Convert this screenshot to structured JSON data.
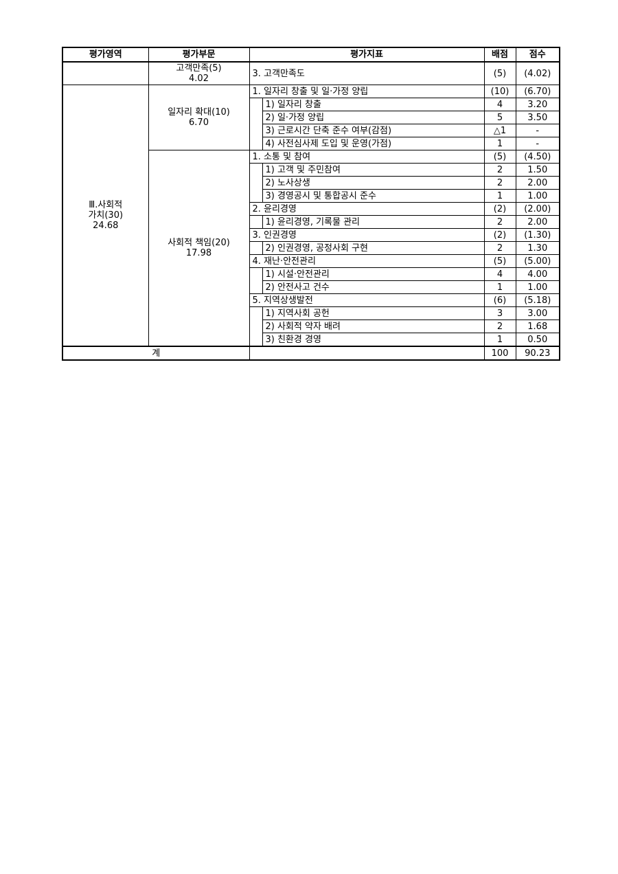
{
  "headers": {
    "area": "평가영역",
    "division": "평가부문",
    "indicator": "평가지표",
    "weight": "배점",
    "score": "점수"
  },
  "sections": [
    {
      "area": "",
      "divisions": [
        {
          "label": "고객만족(5)\n4.02",
          "groups": [
            {
              "main": {
                "label": "3. 고객만족도",
                "weight": "(5)",
                "score": "(4.02)"
              },
              "subs": []
            }
          ]
        }
      ]
    },
    {
      "area": "Ⅲ.사회적\n가치(30)\n24.68",
      "divisions": [
        {
          "label": "일자리 확대(10)\n6.70",
          "groups": [
            {
              "main": {
                "label": "1. 일자리 창출 및 일·가정 양립",
                "weight": "(10)",
                "score": "(6.70)"
              },
              "subs": [
                {
                  "label": "1) 일자리 창출",
                  "weight": "4",
                  "score": "3.20"
                },
                {
                  "label": "2) 일·가정 양립",
                  "weight": "5",
                  "score": "3.50"
                },
                {
                  "label": "3) 근로시간 단축 준수 여부(감점)",
                  "weight": "△1",
                  "score": "-"
                },
                {
                  "label": "4) 사전심사제 도입 및 운영(가점)",
                  "weight": "1",
                  "score": "-"
                }
              ]
            }
          ]
        },
        {
          "label": "사회적 책임(20)\n17.98",
          "groups": [
            {
              "main": {
                "label": "1. 소통 및 참여",
                "weight": "(5)",
                "score": "(4.50)"
              },
              "subs": [
                {
                  "label": "1) 고객 및 주민참여",
                  "weight": "2",
                  "score": "1.50"
                },
                {
                  "label": "2) 노사상생",
                  "weight": "2",
                  "score": "2.00"
                },
                {
                  "label": "3) 경영공시 및 통합공시 준수",
                  "weight": "1",
                  "score": "1.00"
                }
              ]
            },
            {
              "main": {
                "label": "2. 윤리경영",
                "weight": "(2)",
                "score": "(2.00)"
              },
              "subs": [
                {
                  "label": "1) 윤리경영, 기록물 관리",
                  "weight": "2",
                  "score": "2.00"
                }
              ]
            },
            {
              "main": {
                "label": "3. 인권경영",
                "weight": "(2)",
                "score": "(1.30)"
              },
              "subs": [
                {
                  "label": "2) 인권경영, 공정사회 구현",
                  "weight": "2",
                  "score": "1.30"
                }
              ]
            },
            {
              "main": {
                "label": "4. 재난·안전관리",
                "weight": "(5)",
                "score": "(5.00)"
              },
              "subs": [
                {
                  "label": "1) 시설·안전관리",
                  "weight": "4",
                  "score": "4.00"
                },
                {
                  "label": "2) 안전사고 건수",
                  "weight": "1",
                  "score": "1.00"
                }
              ]
            },
            {
              "main": {
                "label": "5. 지역상생발전",
                "weight": "(6)",
                "score": "(5.18)"
              },
              "subs": [
                {
                  "label": "1) 지역사회 공헌",
                  "weight": "3",
                  "score": "3.00"
                },
                {
                  "label": "2) 사회적 약자 배려",
                  "weight": "2",
                  "score": "1.68"
                },
                {
                  "label": "3) 친환경 경영",
                  "weight": "1",
                  "score": "0.50"
                }
              ]
            }
          ]
        }
      ]
    }
  ],
  "total": {
    "label": "계",
    "indicator": "",
    "weight": "100",
    "score": "90.23"
  }
}
